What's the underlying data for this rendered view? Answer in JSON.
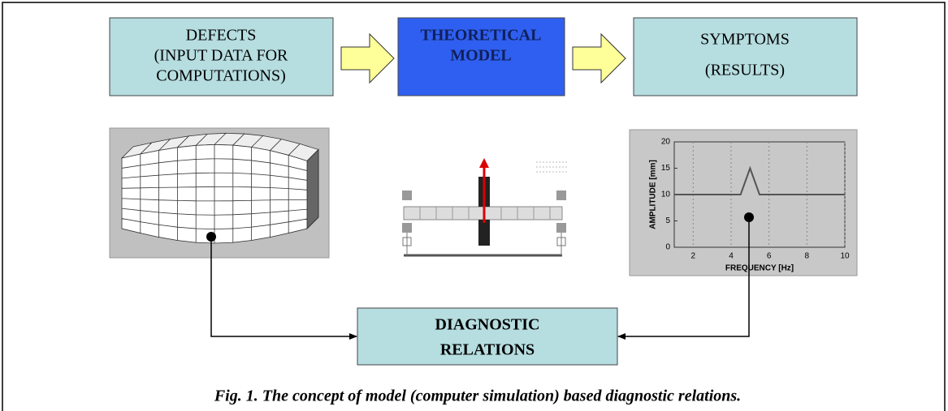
{
  "boxes": {
    "defects": [
      "DEFECTS",
      "(INPUT DATA FOR",
      "COMPUTATIONS)"
    ],
    "model": [
      "THEORETICAL",
      "MODEL"
    ],
    "symptoms": [
      "SYMPTOMS",
      "(RESULTS)"
    ],
    "diagnostic": [
      "DIAGNOSTIC",
      "RELATIONS"
    ]
  },
  "plot": {
    "type": "line",
    "x_label": "FREQUENCY [Hz]",
    "y_label": "AMPLITUDE [mm]",
    "x": [
      1,
      4.5,
      5,
      5.5,
      10
    ],
    "values": [
      10,
      10,
      15,
      10,
      10
    ],
    "color": "#555555",
    "xlim": [
      1,
      10
    ],
    "ylim": [
      0,
      20
    ],
    "xticks": [
      2,
      4,
      6,
      8,
      10
    ],
    "yticks": [
      0,
      5,
      10,
      15,
      20
    ],
    "grid": true
  },
  "caption": "Fig. 1. The concept of model (computer simulation) based diagnostic relations."
}
